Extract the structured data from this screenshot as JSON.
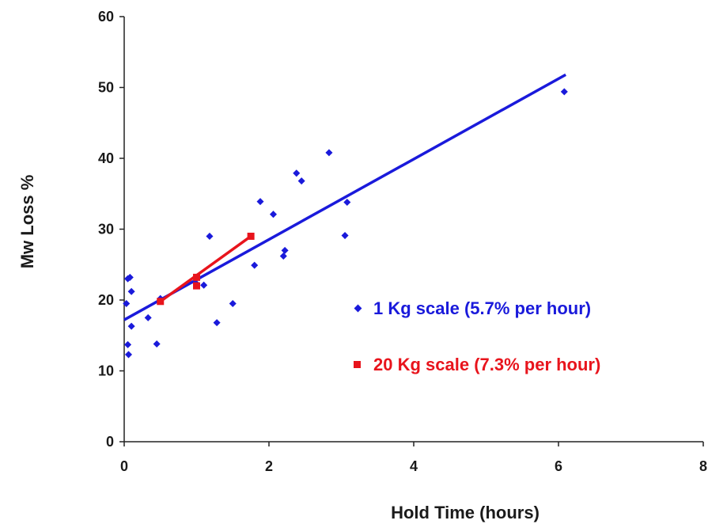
{
  "chart_data": {
    "type": "scatter",
    "xlabel": "Hold Time (hours)",
    "ylabel": "Mw Loss %",
    "xlim": [
      0,
      8
    ],
    "ylim": [
      0,
      60
    ],
    "xticks": [
      "0",
      "2",
      "4",
      "6",
      "8"
    ],
    "yticks": [
      "0",
      "10",
      "20",
      "30",
      "40",
      "50",
      "60"
    ],
    "grid": false,
    "legend_position": "right",
    "series": [
      {
        "name": "1 Kg scale (5.7% per hour)",
        "color": "#1a1adb",
        "marker": "diamond",
        "points": [
          [
            0.03,
            19.5
          ],
          [
            0.05,
            23.0
          ],
          [
            0.08,
            23.2
          ],
          [
            0.05,
            13.7
          ],
          [
            0.06,
            12.3
          ],
          [
            0.1,
            16.3
          ],
          [
            0.1,
            21.2
          ],
          [
            0.33,
            17.5
          ],
          [
            0.45,
            13.8
          ],
          [
            0.5,
            20.2
          ],
          [
            0.98,
            22.5
          ],
          [
            1.1,
            22.1
          ],
          [
            1.18,
            29.0
          ],
          [
            1.28,
            16.8
          ],
          [
            1.5,
            19.5
          ],
          [
            1.8,
            24.9
          ],
          [
            1.88,
            33.9
          ],
          [
            2.06,
            32.1
          ],
          [
            2.2,
            26.2
          ],
          [
            2.22,
            27.0
          ],
          [
            2.38,
            37.9
          ],
          [
            2.45,
            36.8
          ],
          [
            2.83,
            40.8
          ],
          [
            3.05,
            29.1
          ],
          [
            3.08,
            33.8
          ],
          [
            6.08,
            49.4
          ]
        ],
        "trendline": {
          "x": [
            0,
            6.1
          ],
          "y": [
            17.2,
            51.8
          ]
        }
      },
      {
        "name": "20 Kg scale (7.3% per hour)",
        "color": "#e8141c",
        "marker": "square",
        "points": [
          [
            0.5,
            19.8
          ],
          [
            1.0,
            22.0
          ],
          [
            1.0,
            23.2
          ],
          [
            1.75,
            29.0
          ]
        ],
        "trendline": {
          "x": [
            0.5,
            1.75
          ],
          "y": [
            19.8,
            29.0
          ]
        }
      }
    ]
  }
}
